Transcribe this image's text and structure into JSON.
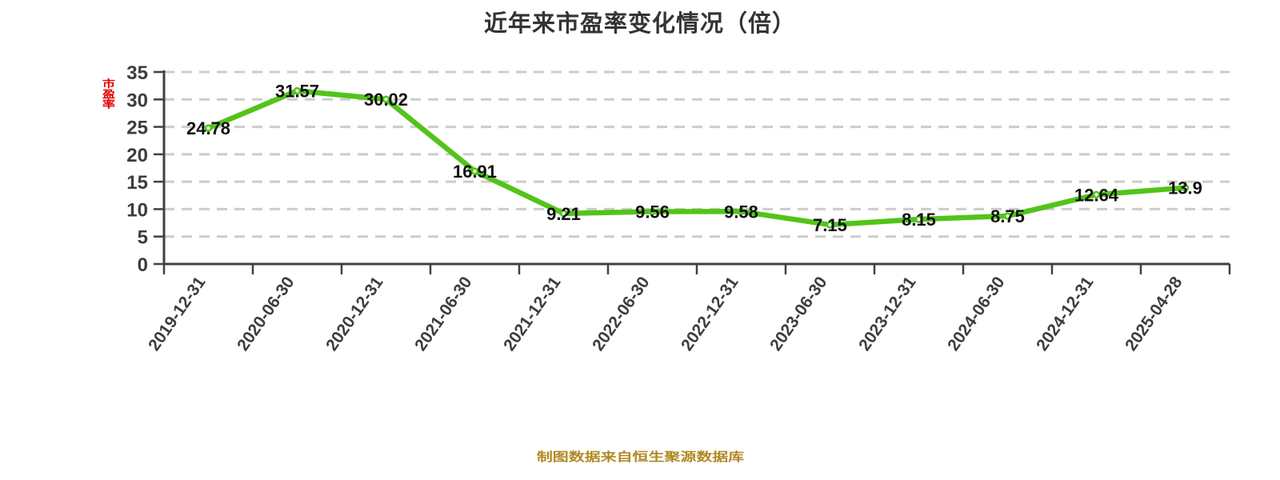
{
  "title": "近年来市盈率变化情况（倍）",
  "y_axis_unit_label": "市盈率",
  "footer": {
    "source_note": "制图数据来自恒生聚源数据库"
  },
  "colors": {
    "line": "#52c41a",
    "dot": "#ffffff",
    "axis": "#404040",
    "grid": "#cccccc",
    "value_label": "#111111",
    "tick_label": "#3d3d3d",
    "title": "#333333",
    "footer": "#b08820",
    "unit": "#e60000"
  },
  "chart_data": {
    "type": "line",
    "title": "近年来市盈率变化情况（倍）",
    "xlabel": "",
    "ylabel": "市盈率",
    "categories": [
      "2019-12-31",
      "2020-06-30",
      "2020-12-31",
      "2021-06-30",
      "2021-12-31",
      "2022-06-30",
      "2022-12-31",
      "2023-06-30",
      "2023-12-31",
      "2024-06-30",
      "2024-12-31",
      "2025-04-28"
    ],
    "values": [
      24.78,
      31.57,
      30.02,
      16.91,
      9.21,
      9.56,
      9.58,
      7.15,
      8.15,
      8.75,
      12.64,
      13.9
    ],
    "ylim": [
      0,
      35
    ],
    "y_ticks": [
      0,
      5,
      10,
      15,
      20,
      25,
      30,
      35
    ],
    "grid": "horizontal-dashed",
    "x_label_rotation_deg": 55,
    "legend": "none",
    "point_label_position": "center-on-point"
  }
}
